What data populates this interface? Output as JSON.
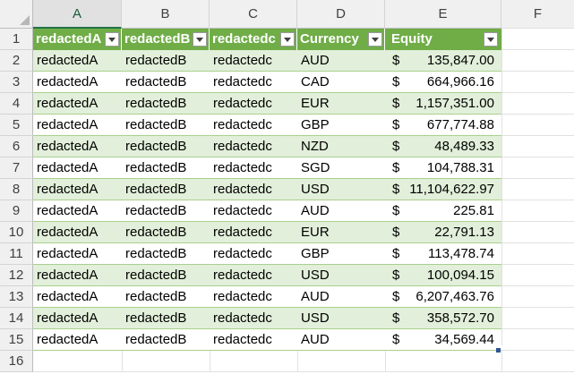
{
  "columns": [
    "A",
    "B",
    "C",
    "D",
    "E",
    "F"
  ],
  "headers": {
    "a": "redactedA",
    "b": "redactedB",
    "c": "redactedc",
    "d": "Currency",
    "e": "Equity"
  },
  "rows": [
    {
      "n": "2",
      "a": "redactedA",
      "b": "redactedB",
      "c": "redactedc",
      "d": "AUD",
      "cur": "$",
      "e": "135,847.00"
    },
    {
      "n": "3",
      "a": "redactedA",
      "b": "redactedB",
      "c": "redactedc",
      "d": "CAD",
      "cur": "$",
      "e": "664,966.16"
    },
    {
      "n": "4",
      "a": "redactedA",
      "b": "redactedB",
      "c": "redactedc",
      "d": "EUR",
      "cur": "$",
      "e": "1,157,351.00"
    },
    {
      "n": "5",
      "a": "redactedA",
      "b": "redactedB",
      "c": "redactedc",
      "d": "GBP",
      "cur": "$",
      "e": "677,774.88"
    },
    {
      "n": "6",
      "a": "redactedA",
      "b": "redactedB",
      "c": "redactedc",
      "d": "NZD",
      "cur": "$",
      "e": "48,489.33"
    },
    {
      "n": "7",
      "a": "redactedA",
      "b": "redactedB",
      "c": "redactedc",
      "d": "SGD",
      "cur": "$",
      "e": "104,788.31"
    },
    {
      "n": "8",
      "a": "redactedA",
      "b": "redactedB",
      "c": "redactedc",
      "d": "USD",
      "cur": "$",
      "e": "11,104,622.97"
    },
    {
      "n": "9",
      "a": "redactedA",
      "b": "redactedB",
      "c": "redactedc",
      "d": "AUD",
      "cur": "$",
      "e": "225.81"
    },
    {
      "n": "10",
      "a": "redactedA",
      "b": "redactedB",
      "c": "redactedc",
      "d": "EUR",
      "cur": "$",
      "e": "22,791.13"
    },
    {
      "n": "11",
      "a": "redactedA",
      "b": "redactedB",
      "c": "redactedc",
      "d": "GBP",
      "cur": "$",
      "e": "113,478.74"
    },
    {
      "n": "12",
      "a": "redactedA",
      "b": "redactedB",
      "c": "redactedc",
      "d": "USD",
      "cur": "$",
      "e": "100,094.15"
    },
    {
      "n": "13",
      "a": "redactedA",
      "b": "redactedB",
      "c": "redactedc",
      "d": "AUD",
      "cur": "$",
      "e": "6,207,463.76"
    },
    {
      "n": "14",
      "a": "redactedA",
      "b": "redactedB",
      "c": "redactedc",
      "d": "USD",
      "cur": "$",
      "e": "358,572.70"
    },
    {
      "n": "15",
      "a": "redactedA",
      "b": "redactedB",
      "c": "redactedc",
      "d": "AUD",
      "cur": "$",
      "e": "34,569.44"
    }
  ],
  "row_numbers": [
    "1",
    "16"
  ],
  "colors": {
    "header_fill": "#70ad47",
    "band_fill": "#e2efda",
    "selected_col": "A"
  }
}
